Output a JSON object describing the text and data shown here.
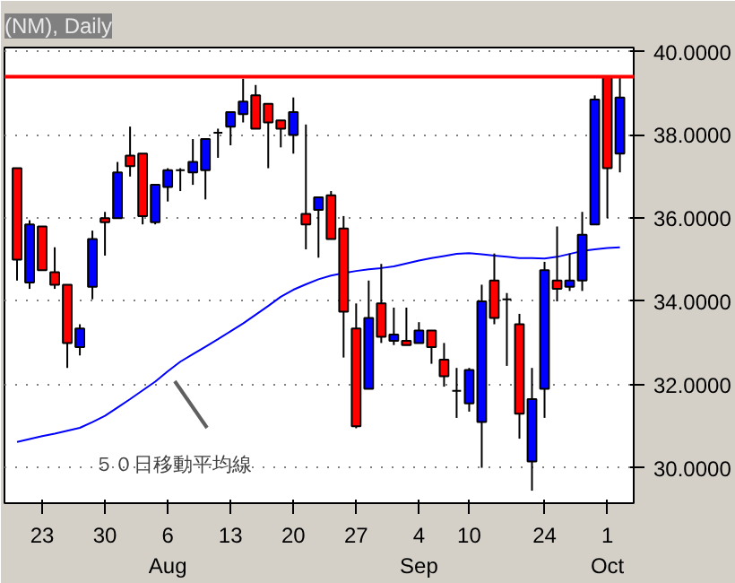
{
  "chart_data": {
    "type": "candlestick",
    "title": "(NM), Daily",
    "categories": [
      null,
      null,
      "23",
      null,
      null,
      null,
      null,
      "30",
      null,
      null,
      null,
      null,
      "6\nAug",
      null,
      null,
      null,
      null,
      "13",
      null,
      null,
      null,
      null,
      "20",
      null,
      null,
      null,
      null,
      "27",
      null,
      null,
      null,
      null,
      "4\nSep",
      null,
      null,
      null,
      "10",
      null,
      null,
      null,
      null,
      null,
      "24",
      null,
      null,
      null,
      null,
      "1\nOct",
      null
    ],
    "ohlc": [
      [
        37.2,
        37.2,
        34.5,
        35.0
      ],
      [
        34.45,
        35.95,
        34.3,
        35.85
      ],
      [
        35.8,
        35.8,
        34.75,
        34.75
      ],
      [
        34.7,
        35.3,
        34.3,
        34.4
      ],
      [
        34.4,
        34.4,
        32.4,
        33.0
      ],
      [
        32.9,
        33.45,
        32.7,
        33.35
      ],
      [
        34.35,
        35.7,
        34.05,
        35.5
      ],
      [
        36.0,
        36.15,
        35.1,
        35.9
      ],
      [
        36.0,
        37.35,
        36.0,
        37.1
      ],
      [
        37.5,
        38.2,
        37.0,
        37.25
      ],
      [
        37.55,
        37.55,
        35.85,
        36.05
      ],
      [
        35.9,
        36.8,
        35.85,
        36.8
      ],
      [
        36.75,
        37.2,
        36.4,
        37.15
      ],
      [
        37.15,
        37.2,
        36.65,
        37.15
      ],
      [
        37.1,
        37.9,
        36.8,
        37.35
      ],
      [
        37.15,
        37.9,
        36.45,
        37.9
      ],
      [
        38.05,
        38.15,
        37.45,
        38.05
      ],
      [
        38.2,
        38.55,
        37.75,
        38.55
      ],
      [
        38.5,
        39.35,
        38.3,
        38.8
      ],
      [
        38.95,
        39.2,
        38.15,
        38.15
      ],
      [
        38.75,
        38.75,
        37.2,
        38.3
      ],
      [
        38.35,
        38.35,
        37.7,
        38.15
      ],
      [
        38.0,
        38.9,
        37.55,
        38.55
      ],
      [
        36.1,
        38.25,
        35.25,
        35.85
      ],
      [
        36.2,
        36.5,
        35.05,
        36.5
      ],
      [
        36.55,
        36.65,
        35.5,
        35.5
      ],
      [
        35.75,
        36.05,
        32.65,
        33.75
      ],
      [
        33.35,
        33.95,
        30.95,
        31.0
      ],
      [
        31.9,
        34.5,
        31.9,
        33.6
      ],
      [
        33.95,
        34.9,
        33.0,
        33.15
      ],
      [
        33.05,
        33.85,
        32.95,
        33.2
      ],
      [
        33.05,
        33.85,
        32.95,
        32.95
      ],
      [
        33.0,
        33.5,
        33.0,
        33.3
      ],
      [
        33.3,
        33.3,
        32.5,
        32.9
      ],
      [
        32.6,
        33.0,
        31.95,
        32.2
      ],
      [
        31.85,
        32.4,
        31.2,
        31.85
      ],
      [
        31.55,
        32.4,
        31.35,
        32.35
      ],
      [
        31.1,
        34.4,
        30.0,
        34.0
      ],
      [
        34.5,
        35.15,
        33.45,
        33.6
      ],
      [
        34.05,
        34.2,
        32.45,
        34.05
      ],
      [
        33.45,
        33.7,
        30.7,
        31.3
      ],
      [
        30.15,
        32.4,
        29.45,
        31.65
      ],
      [
        31.9,
        34.95,
        31.2,
        34.75
      ],
      [
        34.5,
        35.8,
        34.0,
        34.3
      ],
      [
        34.35,
        35.15,
        34.25,
        34.5
      ],
      [
        34.5,
        36.15,
        34.25,
        35.6
      ],
      [
        35.85,
        38.95,
        35.85,
        38.85
      ],
      [
        39.4,
        39.4,
        36.0,
        37.2
      ],
      [
        37.55,
        39.4,
        37.1,
        38.9
      ]
    ],
    "colors": [
      "#ff0000",
      "#0000ff",
      "#ff0000",
      "#ff0000",
      "#ff0000",
      "#0000ff",
      "#0000ff",
      "#ff0000",
      "#0000ff",
      "#ff0000",
      "#ff0000",
      "#0000ff",
      "#0000ff",
      "#000000",
      "#0000ff",
      "#0000ff",
      "#000000",
      "#0000ff",
      "#0000ff",
      "#ff0000",
      "#ff0000",
      "#ff0000",
      "#0000ff",
      "#ff0000",
      "#0000ff",
      "#ff0000",
      "#ff0000",
      "#ff0000",
      "#0000ff",
      "#ff0000",
      "#0000ff",
      "#ff0000",
      "#0000ff",
      "#ff0000",
      "#ff0000",
      "#000000",
      "#0000ff",
      "#0000ff",
      "#ff0000",
      "#000000",
      "#ff0000",
      "#0000ff",
      "#0000ff",
      "#ff0000",
      "#0000ff",
      "#0000ff",
      "#0000ff",
      "#ff0000",
      "#0000ff"
    ],
    "series": [
      {
        "type": "line",
        "color": "#0000ff",
        "values": [
          30.62,
          30.69,
          30.76,
          30.82,
          30.89,
          30.96,
          31.1,
          31.25,
          31.45,
          31.65,
          31.86,
          32.07,
          32.32,
          32.55,
          32.73,
          32.91,
          33.09,
          33.28,
          33.47,
          33.68,
          33.89,
          34.11,
          34.28,
          34.41,
          34.53,
          34.62,
          34.68,
          34.73,
          34.77,
          34.8,
          34.84,
          34.91,
          34.98,
          35.04,
          35.09,
          35.14,
          35.16,
          35.13,
          35.1,
          35.07,
          35.04,
          35.04,
          35.03,
          35.07,
          35.14,
          35.21,
          35.25,
          35.28,
          35.3
        ]
      }
    ],
    "ylim": [
      29.15,
      40.1
    ],
    "yticks": [
      {
        "value": 30,
        "label": "30.0000"
      },
      {
        "value": 32,
        "label": "32.0000"
      },
      {
        "value": 34,
        "label": "34.0000"
      },
      {
        "value": 36,
        "label": "36.0000"
      },
      {
        "value": 38,
        "label": "38.0000"
      },
      {
        "value": 40,
        "label": "40.0000"
      }
    ],
    "grid": "y",
    "ref_lines": [
      {
        "axis": "y",
        "value": 39.4,
        "color": "#ff0000"
      }
    ],
    "annotations": [
      "５０日移動平均線"
    ]
  }
}
